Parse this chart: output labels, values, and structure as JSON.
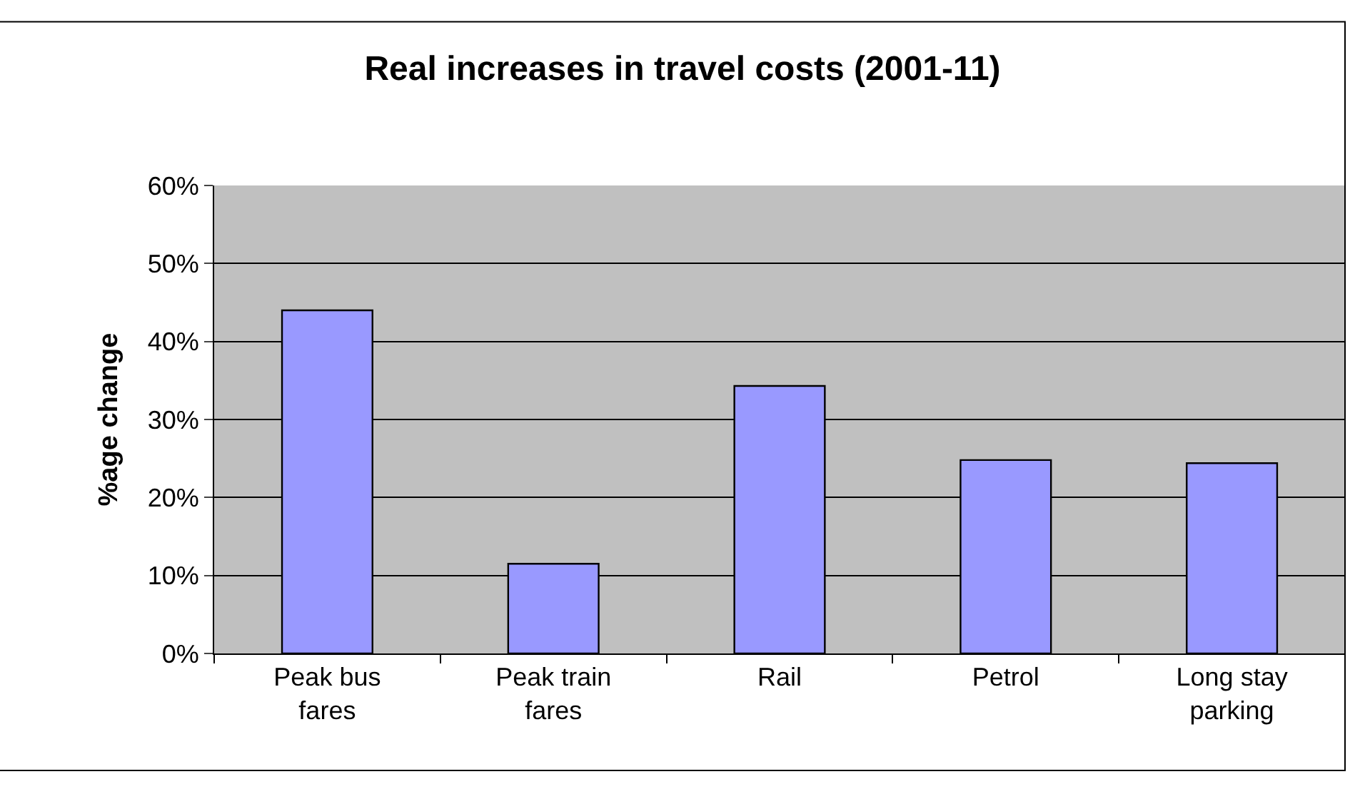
{
  "chart_data": {
    "type": "bar",
    "title": "Real increases in travel costs (2001-11)",
    "ylabel": "%age change",
    "categories": [
      "Peak bus\nfares",
      "Peak train\nfares",
      "Rail",
      "Petrol",
      "Long stay\nparking"
    ],
    "values": [
      44,
      11.5,
      34.3,
      24.8,
      24.4
    ],
    "color": "#9999ff",
    "ylim": [
      0,
      60
    ],
    "yticks": [
      {
        "value": 0,
        "label": "0%"
      },
      {
        "value": 10,
        "label": "10%"
      },
      {
        "value": 20,
        "label": "20%"
      },
      {
        "value": 30,
        "label": "30%"
      },
      {
        "value": 40,
        "label": "40%"
      },
      {
        "value": 50,
        "label": "50%"
      },
      {
        "value": 60,
        "label": "60%"
      }
    ],
    "grid": "y",
    "legend": false
  }
}
